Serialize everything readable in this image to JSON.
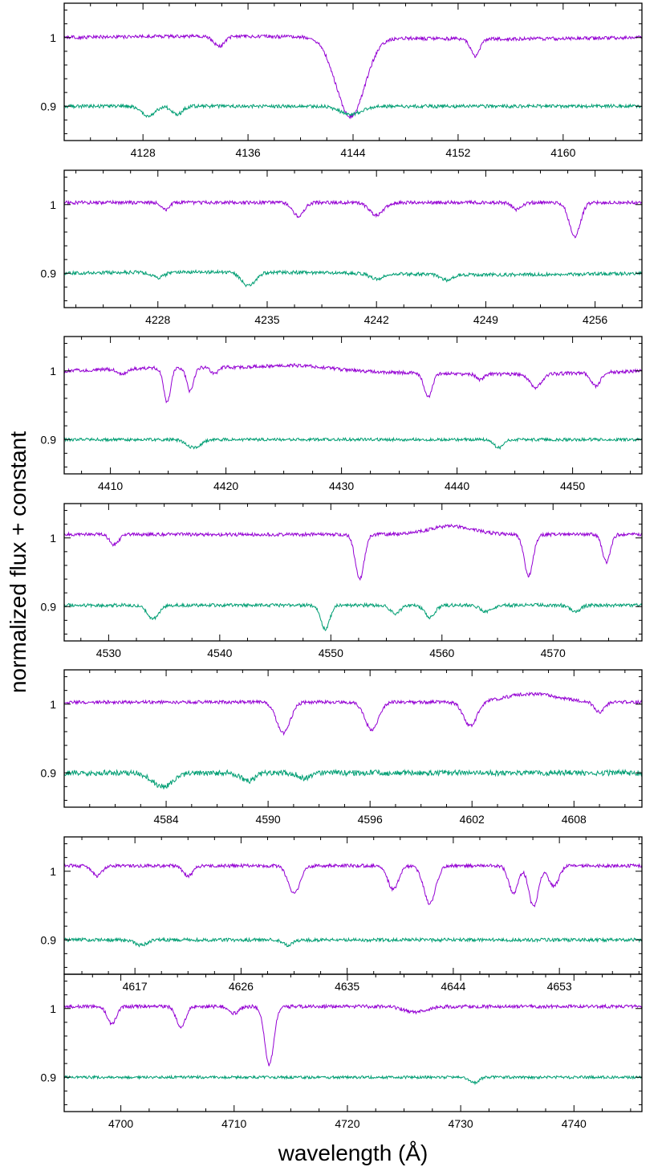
{
  "figure": {
    "xlabel": "wavelength (Å)",
    "ylabel": "normalized flux + constant"
  },
  "colors": {
    "upper_series": "#9400d3",
    "lower_series": "#009e73",
    "frame": "#000000"
  },
  "chart_data": [
    {
      "type": "line",
      "xlim": [
        4122,
        4166
      ],
      "ylim": [
        0.85,
        1.05
      ],
      "xticks": [
        4128,
        4136,
        4144,
        4152,
        4160
      ],
      "xtick_labels": [
        "4128",
        "4136",
        "4144",
        "4152",
        "4160"
      ],
      "yticks": [
        1,
        0.9
      ],
      "ytick_labels": [
        "1",
        "0.9"
      ],
      "series": [
        {
          "continuum": 1.0,
          "slope": 0.002,
          "noise": 0.0025,
          "lines": [
            [
              4133.8,
              0.015,
              0.4
            ],
            [
              4143.8,
              0.115,
              1.1
            ],
            [
              4153.3,
              0.025,
              0.35
            ]
          ]
        },
        {
          "continuum": 0.9,
          "slope": 0.0,
          "noise": 0.0025,
          "lines": [
            [
              4128.4,
              0.015,
              0.5
            ],
            [
              4130.6,
              0.012,
              0.4
            ],
            [
              4143.8,
              0.012,
              0.8
            ]
          ]
        }
      ]
    },
    {
      "type": "line",
      "xlim": [
        4222,
        4259
      ],
      "ylim": [
        0.85,
        1.05
      ],
      "xticks": [
        4228,
        4235,
        4242,
        4249,
        4256
      ],
      "xtick_labels": [
        "4228",
        "4235",
        "4242",
        "4249",
        "4256"
      ],
      "yticks": [
        1,
        0.9
      ],
      "ytick_labels": [
        "1",
        "0.9"
      ],
      "series": [
        {
          "continuum": 1.003,
          "slope": 0.0,
          "noise": 0.0025,
          "lines": [
            [
              4228.5,
              0.01,
              0.25
            ],
            [
              4237.0,
              0.02,
              0.35
            ],
            [
              4242.0,
              0.018,
              0.45
            ],
            [
              4251.0,
              0.01,
              0.3
            ],
            [
              4254.7,
              0.05,
              0.35
            ]
          ]
        },
        {
          "continuum": 0.9,
          "slope": 0.002,
          "noise": 0.0025,
          "lines": [
            [
              4228.0,
              0.008,
              0.4
            ],
            [
              4233.8,
              0.02,
              0.45
            ],
            [
              4242.0,
              0.008,
              0.4
            ],
            [
              4246.5,
              0.008,
              0.4
            ]
          ]
        }
      ]
    },
    {
      "type": "line",
      "xlim": [
        4406,
        4456
      ],
      "ylim": [
        0.85,
        1.05
      ],
      "xticks": [
        4410,
        4420,
        4430,
        4440,
        4450
      ],
      "xtick_labels": [
        "4410",
        "4420",
        "4430",
        "4440",
        "4450"
      ],
      "yticks": [
        1,
        0.9
      ],
      "ytick_labels": [
        "1",
        "0.9"
      ],
      "series": [
        {
          "continuum": 1.0,
          "slope": 0.005,
          "noise": 0.0025,
          "lines": [
            [
              4411.0,
              0.008,
              0.4
            ],
            [
              4414.9,
              0.05,
              0.3
            ],
            [
              4416.9,
              0.035,
              0.3
            ],
            [
              4419.0,
              0.01,
              0.3
            ],
            [
              4426.0,
              -0.005,
              2.5
            ],
            [
              4437.5,
              0.035,
              0.35
            ],
            [
              4442.0,
              0.008,
              0.3
            ],
            [
              4446.8,
              0.02,
              0.5
            ],
            [
              4452.0,
              0.02,
              0.4
            ]
          ]
        },
        {
          "continuum": 0.9,
          "slope": 0.0,
          "noise": 0.0022,
          "lines": [
            [
              4417.2,
              0.012,
              0.6
            ],
            [
              4443.6,
              0.012,
              0.4
            ]
          ]
        }
      ]
    },
    {
      "type": "line",
      "xlim": [
        4526,
        4578
      ],
      "ylim": [
        0.85,
        1.05
      ],
      "xticks": [
        4530,
        4540,
        4550,
        4560,
        4570
      ],
      "xtick_labels": [
        "4530",
        "4540",
        "4550",
        "4560",
        "4570"
      ],
      "yticks": [
        1,
        0.9
      ],
      "ytick_labels": [
        "1",
        "0.9"
      ],
      "series": [
        {
          "continuum": 1.005,
          "slope": 0.0,
          "noise": 0.0025,
          "lines": [
            [
              4530.5,
              0.015,
              0.4
            ],
            [
              4552.6,
              0.065,
              0.4
            ],
            [
              4560.8,
              -0.012,
              2.0
            ],
            [
              4567.8,
              0.06,
              0.4
            ],
            [
              4574.8,
              0.04,
              0.35
            ]
          ]
        },
        {
          "continuum": 0.902,
          "slope": 0.0,
          "noise": 0.0025,
          "lines": [
            [
              4534.0,
              0.02,
              0.5
            ],
            [
              4549.5,
              0.035,
              0.4
            ],
            [
              4555.8,
              0.012,
              0.45
            ],
            [
              4558.9,
              0.018,
              0.45
            ],
            [
              4564.0,
              0.01,
              0.5
            ],
            [
              4572.0,
              0.01,
              0.45
            ]
          ]
        }
      ]
    },
    {
      "type": "line",
      "xlim": [
        4578,
        4612
      ],
      "ylim": [
        0.85,
        1.05
      ],
      "xticks": [
        4584,
        4590,
        4596,
        4602,
        4608
      ],
      "xtick_labels": [
        "4584",
        "4590",
        "4596",
        "4602",
        "4608"
      ],
      "yticks": [
        1,
        0.9
      ],
      "ytick_labels": [
        "1",
        "0.9"
      ],
      "series": [
        {
          "continuum": 1.003,
          "slope": 0.0,
          "noise": 0.0025,
          "lines": [
            [
              4590.9,
              0.045,
              0.4
            ],
            [
              4596.1,
              0.04,
              0.4
            ],
            [
              4601.9,
              0.035,
              0.4
            ],
            [
              4605.5,
              -0.012,
              1.5
            ],
            [
              4609.5,
              0.015,
              0.3
            ]
          ]
        },
        {
          "continuum": 0.9,
          "slope": 0.0,
          "noise": 0.004,
          "lines": [
            [
              4583.8,
              0.02,
              0.6
            ],
            [
              4588.8,
              0.012,
              0.4
            ],
            [
              4592.2,
              0.008,
              0.4
            ]
          ]
        }
      ]
    },
    {
      "type": "line",
      "xlim": [
        4611,
        4660
      ],
      "ylim": [
        0.85,
        1.05
      ],
      "xticks": [
        4617,
        4626,
        4635,
        4644,
        4653
      ],
      "xtick_labels": [
        "4617",
        "4626",
        "4635",
        "4644",
        "4653"
      ],
      "yticks": [
        1,
        0.9
      ],
      "ytick_labels": [
        "1",
        "0.9"
      ],
      "series": [
        {
          "continuum": 1.008,
          "slope": 0.0,
          "noise": 0.0025,
          "lines": [
            [
              4613.8,
              0.015,
              0.4
            ],
            [
              4621.5,
              0.015,
              0.4
            ],
            [
              4630.5,
              0.04,
              0.5
            ],
            [
              4638.9,
              0.035,
              0.45
            ],
            [
              4642.0,
              0.055,
              0.5
            ],
            [
              4649.1,
              0.04,
              0.4
            ],
            [
              4650.8,
              0.06,
              0.4
            ],
            [
              4652.5,
              0.03,
              0.45
            ]
          ]
        },
        {
          "continuum": 0.9,
          "slope": 0.0,
          "noise": 0.0025,
          "lines": [
            [
              4617.5,
              0.008,
              0.5
            ],
            [
              4630.0,
              0.008,
              0.4
            ]
          ]
        }
      ]
    },
    {
      "type": "line",
      "xlim": [
        4695,
        4746
      ],
      "ylim": [
        0.85,
        1.05
      ],
      "xticks": [
        4700,
        4710,
        4720,
        4730,
        4740
      ],
      "xtick_labels": [
        "4700",
        "4710",
        "4720",
        "4730",
        "4740"
      ],
      "yticks": [
        1,
        0.9
      ],
      "ytick_labels": [
        "1",
        "0.9"
      ],
      "series": [
        {
          "continuum": 1.003,
          "slope": 0.0,
          "noise": 0.0025,
          "lines": [
            [
              4699.2,
              0.025,
              0.4
            ],
            [
              4705.3,
              0.03,
              0.4
            ],
            [
              4710.0,
              0.01,
              0.4
            ],
            [
              4713.1,
              0.085,
              0.4
            ],
            [
              4726.0,
              0.008,
              1.0
            ]
          ]
        },
        {
          "continuum": 0.9,
          "slope": 0.0,
          "noise": 0.002,
          "lines": [
            [
              4731.2,
              0.008,
              0.4
            ]
          ]
        }
      ]
    }
  ]
}
